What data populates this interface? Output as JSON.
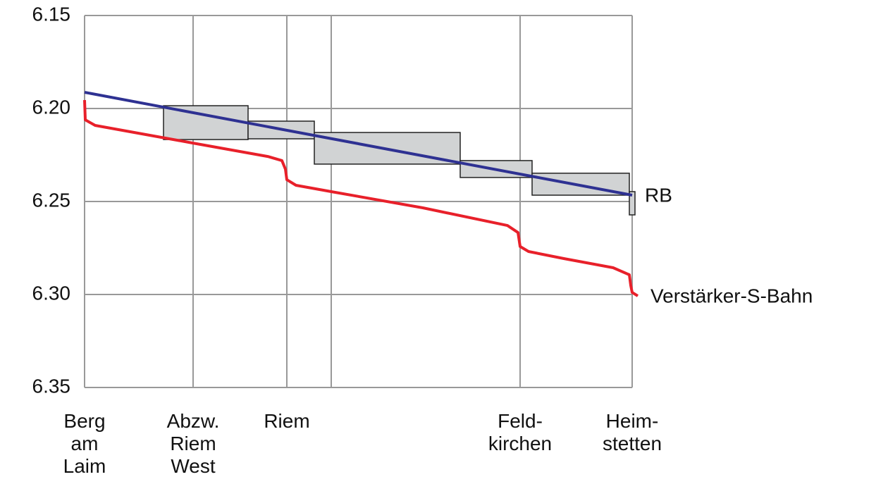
{
  "chart_data": {
    "type": "line",
    "xlim": [
      0,
      7.77
    ],
    "xticks": [
      {
        "value": 0,
        "label": "Berg\nam\nLaim"
      },
      {
        "value": 1.54,
        "label": "Abzw.\nRiem\nWest"
      },
      {
        "value": 2.87,
        "label": "Riem"
      },
      {
        "value": 3.5,
        "label": null
      },
      {
        "value": 6.18,
        "label": "Feld-\nkirchen"
      },
      {
        "value": 7.77,
        "label": "Heim-\nstetten"
      }
    ],
    "ylim": [
      6.15,
      6.35
    ],
    "y_inverted": true,
    "yticks": [
      6.15,
      {
        "value": 6.2,
        "label": "6.20"
      },
      6.25,
      {
        "value": 6.3,
        "label": "6.30"
      },
      6.35
    ],
    "grid": true,
    "blocks_color": "#d1d3d4",
    "blocks": [
      {
        "x": [
          1.12,
          2.32
        ],
        "y": [
          6.1985,
          6.2167
        ]
      },
      {
        "x": [
          2.32,
          3.26
        ],
        "y": [
          6.2068,
          6.2163
        ]
      },
      {
        "x": [
          3.26,
          5.33
        ],
        "y": [
          6.2129,
          6.2299
        ]
      },
      {
        "x": [
          5.33,
          6.35
        ],
        "y": [
          6.228,
          6.2371
        ]
      },
      {
        "x": [
          6.35,
          7.73
        ],
        "y": [
          6.2348,
          6.2466
        ]
      },
      {
        "x": [
          7.73,
          7.81
        ],
        "y": [
          6.2447,
          6.2572
        ]
      }
    ],
    "series": [
      {
        "name": "RB",
        "color": "#2e3192",
        "x": [
          0,
          7.77
        ],
        "values": [
          6.1913,
          6.2466
        ]
      },
      {
        "name": "Verstärker-S-Bahn",
        "color": "#e8202a",
        "x": [
          0,
          0.01,
          0.15,
          1.54,
          2.6,
          2.8,
          2.85,
          2.87,
          3.0,
          3.5,
          4.8,
          6.0,
          6.15,
          6.18,
          6.3,
          6.8,
          7.5,
          7.73,
          7.75,
          7.77,
          7.85
        ],
        "values": [
          6.1955,
          6.2061,
          6.2091,
          6.2186,
          6.2258,
          6.228,
          6.2326,
          6.2383,
          6.2413,
          6.2447,
          6.2534,
          6.2629,
          6.2667,
          6.2742,
          6.2769,
          6.2807,
          6.2856,
          6.2894,
          6.2951,
          6.2989,
          6.3008
        ]
      }
    ]
  }
}
